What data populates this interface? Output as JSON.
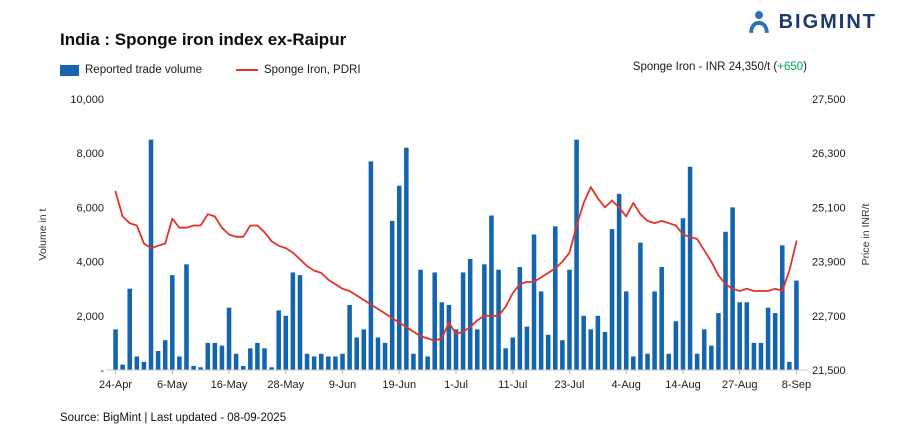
{
  "header": {
    "brand": "BIGMINT",
    "title": "India : Sponge iron index ex-Raipur"
  },
  "legend": {
    "volume_label": "Reported trade volume",
    "price_label": "Sponge Iron, PDRI"
  },
  "price_callout": {
    "prefix": "Sponge Iron - INR 24,350/t (",
    "change": "+650",
    "suffix": ")"
  },
  "footer": {
    "source": "Source: BigMint | Last updated - 08-09-2025"
  },
  "colors": {
    "bar_blue": "#1565ae",
    "line_red": "#e63127",
    "brand_navy": "#1d3a6d",
    "change_green": "#00a550"
  },
  "chart_data": {
    "type": "combo-bar-line",
    "title": "India : Sponge iron index ex-Raipur",
    "grid": false,
    "x_tick_labels": [
      "24-Apr",
      "6-May",
      "16-May",
      "28-May",
      "9-Jun",
      "19-Jun",
      "1-Jul",
      "11-Jul",
      "23-Jul",
      "4-Aug",
      "14-Aug",
      "27-Aug",
      "8-Sep"
    ],
    "x_tick_indices": [
      0,
      8,
      16,
      24,
      32,
      40,
      48,
      56,
      64,
      72,
      80,
      88,
      96
    ],
    "left_axis": {
      "label": "Volume in t",
      "min": 0,
      "max": 10000,
      "ticks": [
        "10,000",
        "8,000",
        "6,000",
        "4,000",
        "2,000",
        "-"
      ]
    },
    "right_axis": {
      "label": "Price in INR/t",
      "min": 21500,
      "max": 27500,
      "ticks": [
        "27,500",
        "26,300",
        "25,100",
        "23,900",
        "22,700",
        "21,500"
      ]
    },
    "series": [
      {
        "name": "Reported trade volume",
        "kind": "bar",
        "color": "#1565ae",
        "axis": "left",
        "values": [
          1500,
          200,
          3000,
          500,
          300,
          8500,
          700,
          1100,
          3500,
          500,
          3900,
          150,
          100,
          1000,
          1000,
          900,
          2300,
          600,
          150,
          800,
          1000,
          800,
          100,
          2200,
          2000,
          3600,
          3500,
          600,
          500,
          600,
          500,
          500,
          600,
          2400,
          1200,
          1500,
          7700,
          1200,
          1000,
          5500,
          6800,
          8200,
          600,
          3700,
          500,
          3600,
          2500,
          2400,
          1500,
          3600,
          4100,
          1500,
          3900,
          5700,
          3700,
          800,
          1200,
          3800,
          1600,
          5000,
          2900,
          1300,
          5300,
          1100,
          3700,
          8500,
          2000,
          1500,
          2000,
          1400,
          5200,
          6500,
          2900,
          500,
          4700,
          600,
          2900,
          3800,
          600,
          1800,
          5600,
          7500,
          600,
          1500,
          900,
          2100,
          5100,
          6000,
          2500,
          2500,
          1000,
          1000,
          2300,
          2100,
          4600,
          300,
          3300
        ]
      },
      {
        "name": "Sponge Iron, PDRI",
        "kind": "line",
        "color": "#e63127",
        "axis": "right",
        "values": [
          25450,
          24900,
          24750,
          24700,
          24300,
          24200,
          24250,
          24300,
          24850,
          24650,
          24650,
          24700,
          24700,
          24950,
          24900,
          24650,
          24500,
          24450,
          24450,
          24700,
          24700,
          24550,
          24350,
          24250,
          24200,
          24100,
          23950,
          23800,
          23700,
          23650,
          23500,
          23400,
          23300,
          23250,
          23150,
          23050,
          22950,
          22850,
          22750,
          22650,
          22550,
          22450,
          22350,
          22250,
          22200,
          22150,
          22200,
          22550,
          22300,
          22350,
          22450,
          22600,
          22700,
          22700,
          22700,
          22900,
          23200,
          23400,
          23450,
          23450,
          23550,
          23650,
          23750,
          23900,
          24100,
          24700,
          25200,
          25550,
          25300,
          25100,
          25250,
          25100,
          24900,
          25200,
          24950,
          24800,
          24750,
          24800,
          24750,
          24700,
          24500,
          24450,
          24400,
          24150,
          23900,
          23600,
          23400,
          23300,
          23250,
          23300,
          23250,
          23250,
          23250,
          23300,
          23250,
          23700,
          24350
        ]
      }
    ]
  }
}
